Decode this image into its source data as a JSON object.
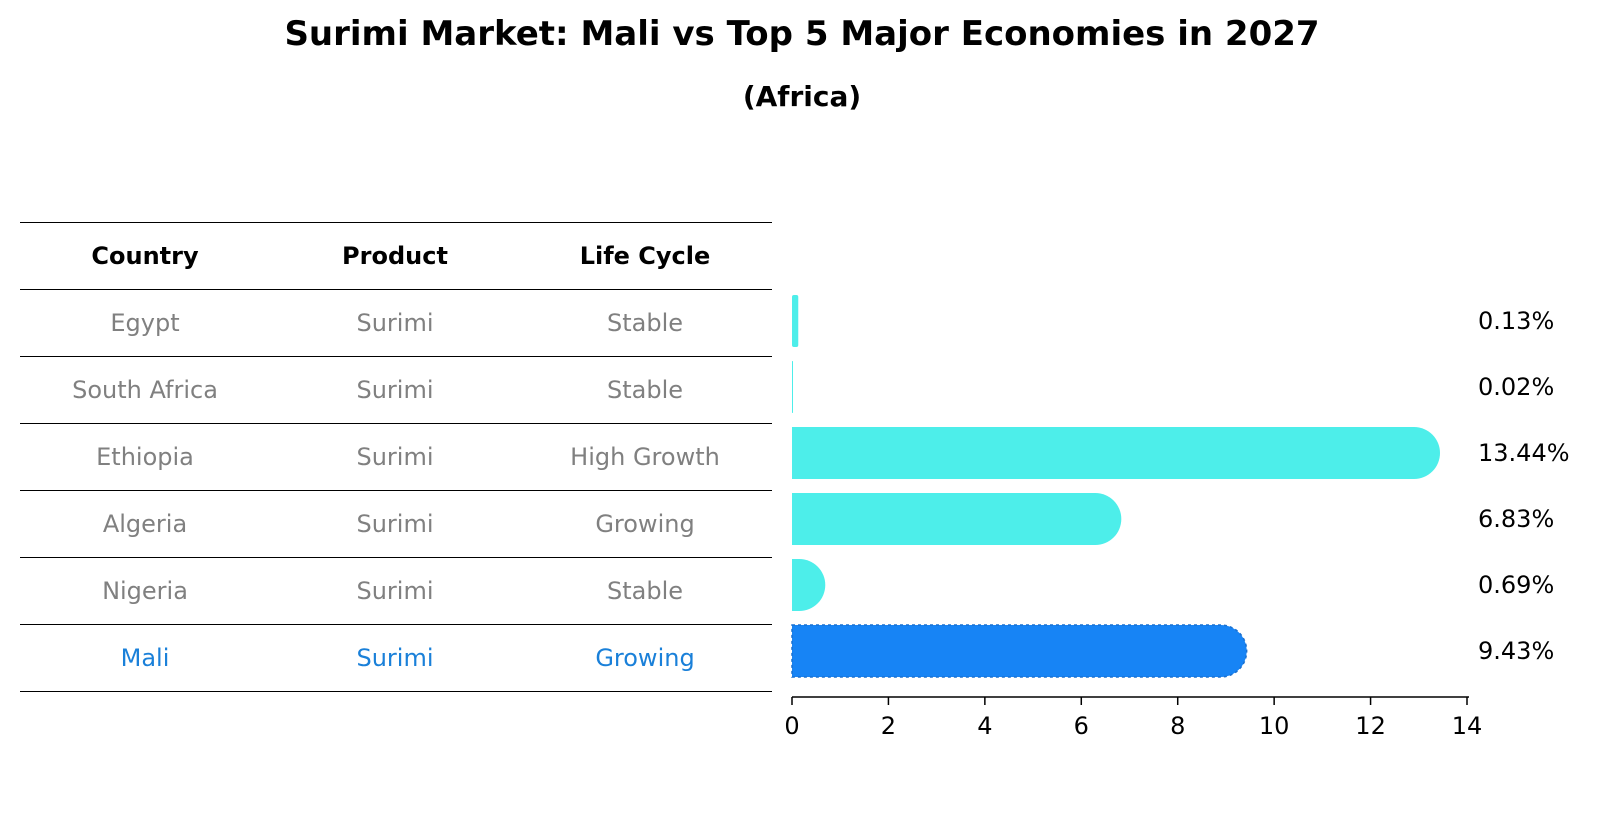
{
  "title": "Surimi Market: Mali vs Top 5 Major Economies in 2027",
  "subtitle": "(Africa)",
  "table": {
    "headers": [
      "Country",
      "Product",
      "Life Cycle"
    ],
    "rows": [
      [
        "Egypt",
        "Surimi",
        "Stable"
      ],
      [
        "South Africa",
        "Surimi",
        "Stable"
      ],
      [
        "Ethiopia",
        "Surimi",
        "High Growth"
      ],
      [
        "Algeria",
        "Surimi",
        "Growing"
      ],
      [
        "Nigeria",
        "Surimi",
        "Stable"
      ],
      [
        "Mali",
        "Surimi",
        "Growing"
      ]
    ]
  },
  "colors": {
    "bar": "#4deeea",
    "highlight_bar": "#1784f5",
    "highlight_text": "#1a80d9",
    "muted_text": "#808080"
  },
  "chart_data": {
    "type": "bar",
    "orientation": "horizontal",
    "categories": [
      "Egypt",
      "South Africa",
      "Ethiopia",
      "Algeria",
      "Nigeria",
      "Mali"
    ],
    "values": [
      0.13,
      0.02,
      13.44,
      6.83,
      0.69,
      9.43
    ],
    "value_labels": [
      "0.13%",
      "0.02%",
      "13.44%",
      "6.83%",
      "0.69%",
      "9.43%"
    ],
    "highlight": "Mali",
    "xlim": [
      0,
      14
    ],
    "xticks": [
      0,
      2,
      4,
      6,
      8,
      10,
      12,
      14
    ],
    "xlabel": "",
    "ylabel": "",
    "grid": false
  }
}
